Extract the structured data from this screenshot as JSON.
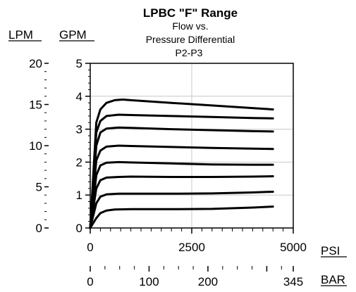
{
  "chart_data": {
    "type": "line",
    "title": "LPBC \"F\" Range",
    "subtitle_lines": [
      "Flow vs.",
      "Pressure Differential",
      "P2-P3"
    ],
    "xlabel": "PSI",
    "x2label": "BAR",
    "ylabel": "GPM",
    "y2label": "LPM",
    "xlim": [
      0,
      5000
    ],
    "ylim": [
      0,
      5
    ],
    "y2lim": [
      0,
      20
    ],
    "x2lim": [
      0,
      345
    ],
    "xticks": [
      0,
      2500,
      5000
    ],
    "yticks": [
      0,
      1,
      2,
      3,
      4,
      5
    ],
    "y2ticks": [
      0,
      5,
      10,
      15,
      20
    ],
    "x2ticks": [
      0,
      100,
      200,
      345
    ],
    "x2ticklabels": [
      "0",
      "100",
      "200",
      "345"
    ],
    "grid": true,
    "series": [
      {
        "values": [
          [
            0,
            0
          ],
          [
            150,
            0.3
          ],
          [
            250,
            0.45
          ],
          [
            400,
            0.53
          ],
          [
            600,
            0.56
          ],
          [
            1000,
            0.57
          ],
          [
            2000,
            0.57
          ],
          [
            3000,
            0.58
          ],
          [
            4000,
            0.62
          ],
          [
            4500,
            0.65
          ]
        ]
      },
      {
        "values": [
          [
            0,
            0
          ],
          [
            150,
            0.75
          ],
          [
            250,
            0.95
          ],
          [
            400,
            1.02
          ],
          [
            700,
            1.04
          ],
          [
            1000,
            1.04
          ],
          [
            2000,
            1.04
          ],
          [
            3000,
            1.05
          ],
          [
            4000,
            1.08
          ],
          [
            4500,
            1.1
          ]
        ]
      },
      {
        "values": [
          [
            0,
            0
          ],
          [
            150,
            1.2
          ],
          [
            250,
            1.45
          ],
          [
            400,
            1.53
          ],
          [
            700,
            1.55
          ],
          [
            1000,
            1.56
          ],
          [
            2000,
            1.55
          ],
          [
            3000,
            1.55
          ],
          [
            4000,
            1.56
          ],
          [
            4500,
            1.57
          ]
        ]
      },
      {
        "values": [
          [
            0,
            0
          ],
          [
            150,
            1.6
          ],
          [
            250,
            1.9
          ],
          [
            400,
            1.98
          ],
          [
            700,
            2.0
          ],
          [
            1000,
            1.99
          ],
          [
            2000,
            1.96
          ],
          [
            3000,
            1.93
          ],
          [
            4000,
            1.92
          ],
          [
            4500,
            1.92
          ]
        ]
      },
      {
        "values": [
          [
            0,
            0
          ],
          [
            150,
            2.05
          ],
          [
            250,
            2.35
          ],
          [
            400,
            2.47
          ],
          [
            700,
            2.5
          ],
          [
            1000,
            2.49
          ],
          [
            2000,
            2.46
          ],
          [
            3000,
            2.43
          ],
          [
            4000,
            2.41
          ],
          [
            4500,
            2.4
          ]
        ]
      },
      {
        "values": [
          [
            0,
            0
          ],
          [
            150,
            2.5
          ],
          [
            250,
            2.9
          ],
          [
            400,
            3.02
          ],
          [
            700,
            3.05
          ],
          [
            1000,
            3.04
          ],
          [
            2000,
            3.0
          ],
          [
            3000,
            2.97
          ],
          [
            4000,
            2.94
          ],
          [
            4500,
            2.93
          ]
        ]
      },
      {
        "values": [
          [
            0,
            0
          ],
          [
            150,
            2.9
          ],
          [
            250,
            3.25
          ],
          [
            400,
            3.4
          ],
          [
            700,
            3.44
          ],
          [
            1000,
            3.43
          ],
          [
            2000,
            3.4
          ],
          [
            3000,
            3.37
          ],
          [
            4000,
            3.34
          ],
          [
            4500,
            3.33
          ]
        ]
      },
      {
        "values": [
          [
            0,
            0
          ],
          [
            150,
            3.2
          ],
          [
            250,
            3.6
          ],
          [
            400,
            3.8
          ],
          [
            600,
            3.88
          ],
          [
            800,
            3.9
          ],
          [
            1000,
            3.88
          ],
          [
            2000,
            3.8
          ],
          [
            3000,
            3.72
          ],
          [
            4000,
            3.64
          ],
          [
            4500,
            3.6
          ]
        ]
      }
    ]
  }
}
